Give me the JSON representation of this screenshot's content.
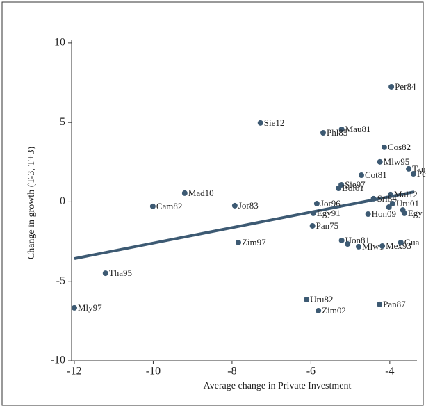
{
  "chart_data": {
    "type": "scatter",
    "x_label": "Average change in Private Investment",
    "y_label": "Change in growth (T-3, T+3)",
    "xlim": [
      -12.07,
      -3.31
    ],
    "ylim": [
      -10,
      10.17
    ],
    "xticks": [
      -12,
      -10,
      -8,
      -6,
      -4
    ],
    "yticks": [
      -10,
      -5,
      0,
      5,
      10
    ],
    "color": "#3d5a73",
    "x": [
      -3.96,
      -7.28,
      -5.22,
      -5.69,
      -4.14,
      -4.25,
      -3.52,
      -3.4,
      -4.72,
      -5.23,
      -5.3,
      -9.2,
      -3.98,
      -4.41,
      -5.85,
      -10.01,
      -7.93,
      -3.93,
      -4.02,
      -3.67,
      -5.94,
      -4.55,
      -3.63,
      -5.96,
      -5.22,
      -7.84,
      -5.07,
      -4.79,
      -4.19,
      -3.72,
      -11.21,
      -12.0,
      -6.11,
      -5.81,
      -4.26
    ],
    "y": [
      7.24,
      4.97,
      4.57,
      4.35,
      3.44,
      2.52,
      2.08,
      1.77,
      1.68,
      1.07,
      0.85,
      0.55,
      0.46,
      0.2,
      -0.11,
      -0.28,
      -0.24,
      -0.11,
      -0.33,
      -0.51,
      -0.72,
      -0.77,
      -0.72,
      -1.51,
      -2.43,
      -2.56,
      -2.65,
      -2.82,
      -2.78,
      -2.56,
      -4.49,
      -6.67,
      -6.15,
      -6.85,
      -6.45
    ],
    "labels": [
      "Per84",
      "Sie12",
      "Mau81",
      "Phl85",
      "Cos82",
      "Mlw95",
      "Tan",
      "Pe",
      "Cot81",
      "Sie97",
      "Bol01",
      "Mad10",
      "Mal12",
      "Sri84",
      "Jor96",
      "Cam82",
      "Jor83",
      "Uru01",
      null,
      null,
      "Egy91",
      "Hon09",
      "Egy",
      "Pan75",
      "Hon81",
      "Zim97",
      null,
      "Mlw1",
      "Mex93",
      "Gua",
      "Tha95",
      "Mly97",
      "Uru82",
      "Zim02",
      "Pan87"
    ],
    "fit_line": {
      "color": "#3d5a73",
      "x": [
        -12,
        -3.38
      ],
      "y": [
        -3.57,
        0.63
      ]
    }
  }
}
